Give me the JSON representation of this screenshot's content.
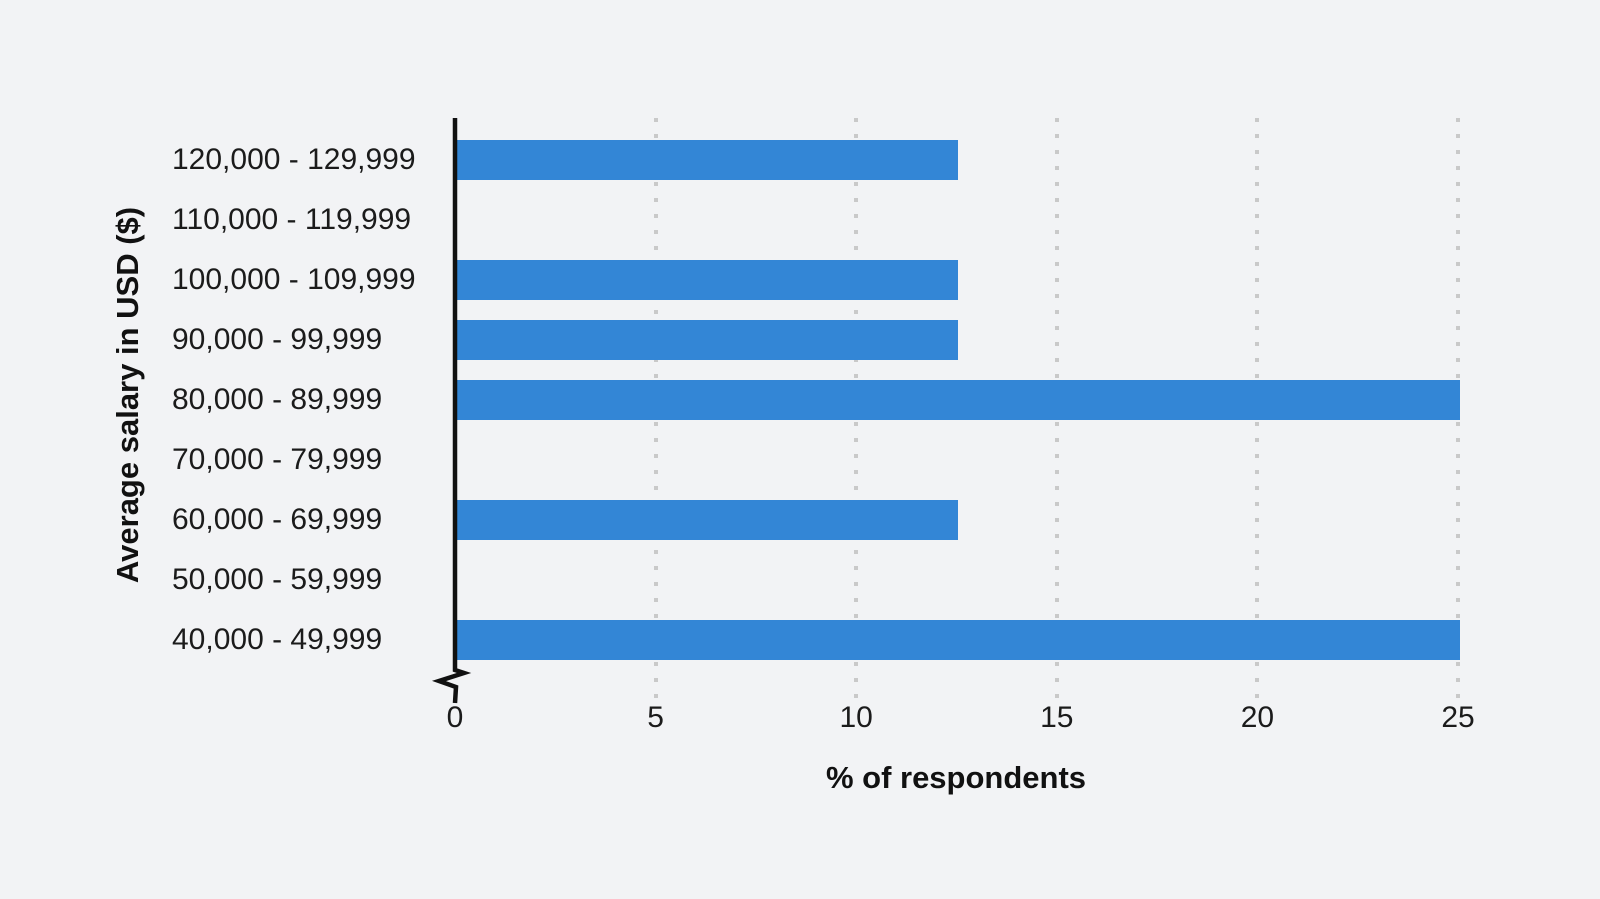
{
  "chart_data": {
    "type": "bar",
    "orientation": "horizontal",
    "categories": [
      "120,000 - 129,999",
      "110,000 - 119,999",
      "100,000 - 109,999",
      "90,000 - 99,999",
      "80,000 - 89,999",
      "70,000 - 79,999",
      "60,000 - 69,999",
      "50,000 - 59,999",
      "40,000 - 49,999"
    ],
    "values": [
      12.5,
      0,
      12.5,
      12.5,
      25,
      0,
      12.5,
      0,
      25
    ],
    "title": "",
    "xlabel": "% of respondents",
    "ylabel": "Average salary in USD ($)",
    "xlim": [
      0,
      25
    ],
    "xticks": [
      "0",
      "5",
      "10",
      "15",
      "20",
      "25"
    ],
    "grid": "vertical dotted gridlines at each x tick except 0",
    "axis_break_at_origin": true,
    "legend": "none",
    "colors": {
      "bar": "#3386d6",
      "background": "#f2f3f5",
      "gridline": "#c9c9c9",
      "axis_line": "#111111",
      "text": "#1b1b1b"
    }
  }
}
